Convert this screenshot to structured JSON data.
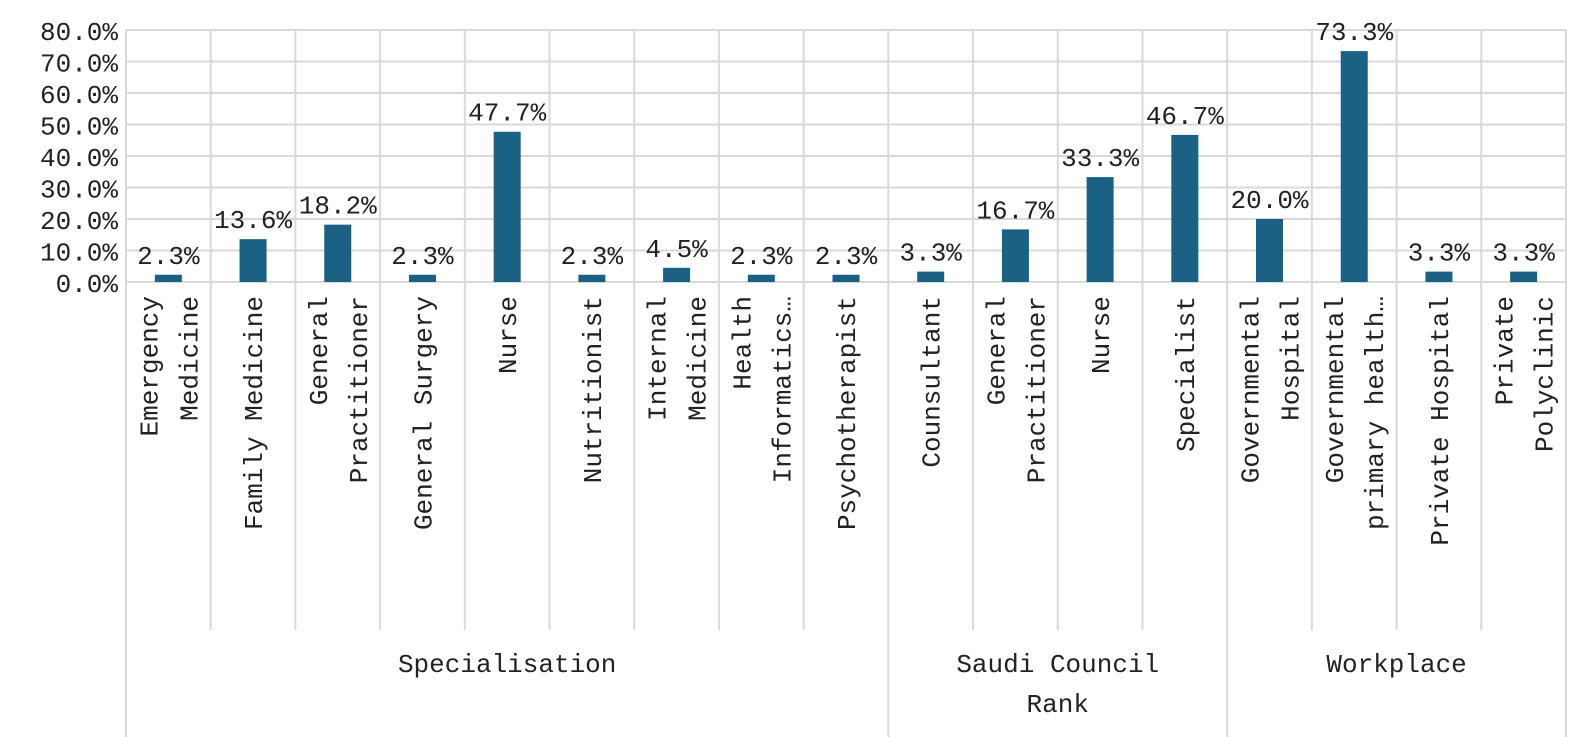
{
  "chart_data": {
    "type": "bar",
    "ylim": [
      0,
      80
    ],
    "yticks": [
      "0.0%",
      "10.0%",
      "20.0%",
      "30.0%",
      "40.0%",
      "50.0%",
      "60.0%",
      "70.0%",
      "80.0%"
    ],
    "grid": true,
    "bar_color": "#1a6183",
    "groups": [
      {
        "name": "Specialisation",
        "categories": [
          [
            "Emergency",
            "Medicine"
          ],
          [
            "Family Medicine"
          ],
          [
            "General",
            "Practitioner"
          ],
          [
            "General Surgery"
          ],
          [
            "Nurse"
          ],
          [
            "Nutritionist"
          ],
          [
            "Internal",
            "Medicine"
          ],
          [
            "Health",
            "Informatics…"
          ],
          [
            "Psychotherapist"
          ]
        ],
        "values": [
          2.3,
          13.6,
          18.2,
          2.3,
          47.7,
          2.3,
          4.5,
          2.3,
          2.3
        ],
        "labels": [
          "2.3%",
          "13.6%",
          "18.2%",
          "2.3%",
          "47.7%",
          "2.3%",
          "4.5%",
          "2.3%",
          "2.3%"
        ]
      },
      {
        "name": [
          "Saudi Council",
          "Rank"
        ],
        "categories": [
          [
            "Counsultant"
          ],
          [
            "General",
            "Practitioner"
          ],
          [
            "Nurse"
          ],
          [
            "Specialist"
          ]
        ],
        "values": [
          3.3,
          16.7,
          33.3,
          46.7
        ],
        "labels": [
          "3.3%",
          "16.7%",
          "33.3%",
          "46.7%"
        ]
      },
      {
        "name": "Workplace",
        "categories": [
          [
            "Governmental",
            "Hospital"
          ],
          [
            "Governmental",
            "primary health…"
          ],
          [
            "Private Hospital"
          ],
          [
            "Private",
            "Polyclinic"
          ]
        ],
        "values": [
          20.0,
          73.3,
          3.3,
          3.3
        ],
        "labels": [
          "20.0%",
          "73.3%",
          "3.3%",
          "3.3%"
        ]
      }
    ]
  }
}
